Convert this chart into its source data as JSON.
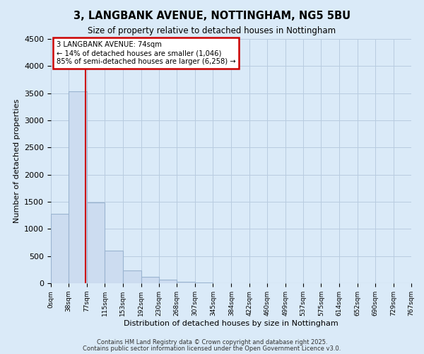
{
  "title": "3, LANGBANK AVENUE, NOTTINGHAM, NG5 5BU",
  "subtitle": "Size of property relative to detached houses in Nottingham",
  "xlabel": "Distribution of detached houses by size in Nottingham",
  "ylabel": "Number of detached properties",
  "bar_edges": [
    0,
    38,
    77,
    115,
    153,
    192,
    230,
    268,
    307,
    345,
    384,
    422,
    460,
    499,
    537,
    575,
    614,
    652,
    690,
    729,
    767
  ],
  "bar_heights": [
    1280,
    3540,
    1490,
    600,
    240,
    120,
    60,
    30,
    10,
    5,
    2,
    0,
    0,
    0,
    0,
    0,
    0,
    0,
    0,
    0
  ],
  "tick_labels": [
    "0sqm",
    "38sqm",
    "77sqm",
    "115sqm",
    "153sqm",
    "192sqm",
    "230sqm",
    "268sqm",
    "307sqm",
    "345sqm",
    "384sqm",
    "422sqm",
    "460sqm",
    "499sqm",
    "537sqm",
    "575sqm",
    "614sqm",
    "652sqm",
    "690sqm",
    "729sqm",
    "767sqm"
  ],
  "bar_color": "#ccdcf0",
  "bar_edge_color": "#9ab4d0",
  "property_line_x": 74,
  "annotation_title": "3 LANGBANK AVENUE: 74sqm",
  "annotation_line1": "← 14% of detached houses are smaller (1,046)",
  "annotation_line2": "85% of semi-detached houses are larger (6,258) →",
  "annotation_box_color": "#ffffff",
  "annotation_box_edge": "#cc0000",
  "property_line_color": "#cc0000",
  "ylim": [
    0,
    4500
  ],
  "xlim": [
    0,
    767
  ],
  "grid_color": "#b8cce0",
  "background_color": "#daeaf8",
  "footer1": "Contains HM Land Registry data © Crown copyright and database right 2025.",
  "footer2": "Contains public sector information licensed under the Open Government Licence v3.0."
}
